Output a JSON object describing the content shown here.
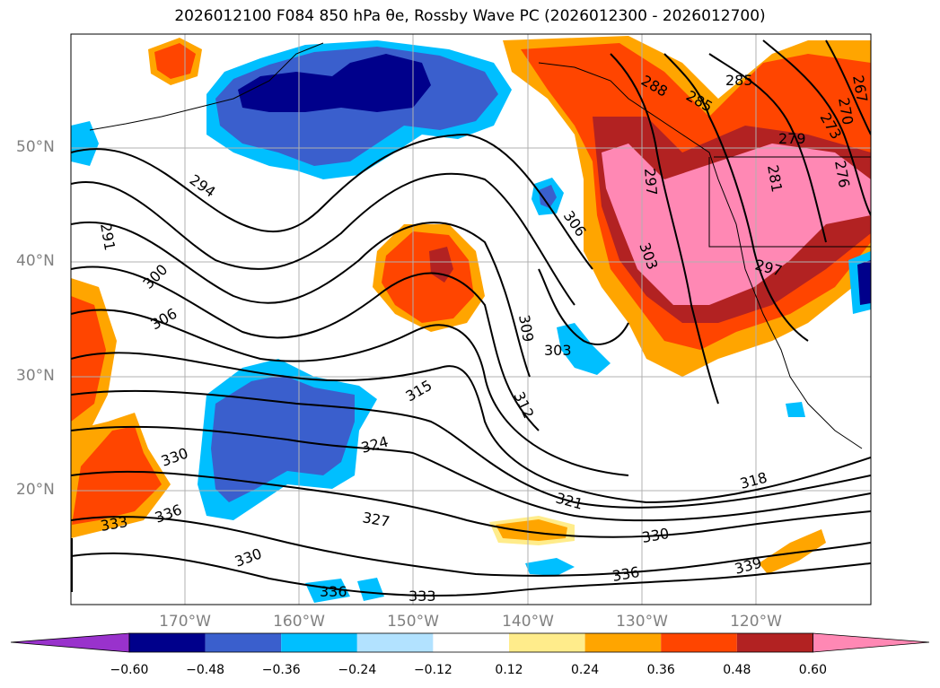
{
  "title": "2026012100 F084 850 hPa θe, Rossby Wave PC (2026012300 - 2026012700)",
  "latitude_labels": [
    "50°N",
    "40°N",
    "30°N",
    "20°N"
  ],
  "longitude_labels": [
    "170°W",
    "160°W",
    "150°W",
    "140°W",
    "130°W",
    "120°W"
  ],
  "contour_labels": [
    "291",
    "294",
    "300",
    "306",
    "315",
    "330",
    "324",
    "333",
    "336",
    "330",
    "327",
    "336",
    "333",
    "309",
    "312",
    "303",
    "306",
    "303",
    "297",
    "321",
    "318",
    "330",
    "336",
    "339",
    "288",
    "285",
    "285",
    "279",
    "273",
    "270",
    "267",
    "281",
    "276",
    "297"
  ],
  "colorbar": {
    "colors": [
      "#9932cc",
      "#00008b",
      "#3a5fcd",
      "#00bfff",
      "#b2e2ff",
      "#ffffff",
      "#ffec8b",
      "#ffa500",
      "#ff4500",
      "#b22222",
      "#ff88b4"
    ],
    "ticks": [
      "−0.60",
      "−0.48",
      "−0.36",
      "−0.24",
      "−0.12",
      "0.12",
      "0.24",
      "0.36",
      "0.48",
      "0.60"
    ],
    "extend": "both"
  },
  "colors": {
    "frame": "#000000",
    "grid": "#b0b0b0",
    "contour": "#000000",
    "axis_labels": "#808080"
  }
}
